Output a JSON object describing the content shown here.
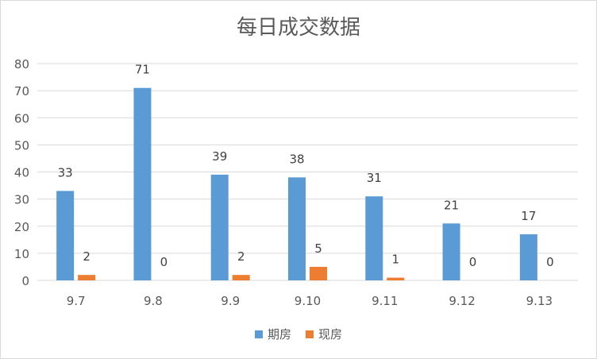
{
  "chart_data": {
    "type": "bar",
    "title": "每日成交数据",
    "categories": [
      "9.7",
      "9.8",
      "9.9",
      "9.10",
      "9.11",
      "9.12",
      "9.13"
    ],
    "series": [
      {
        "name": "期房",
        "color": "#5b9bd5",
        "values": [
          33,
          71,
          39,
          38,
          31,
          21,
          17
        ]
      },
      {
        "name": "现房",
        "color": "#ed7d31",
        "values": [
          2,
          0,
          2,
          5,
          1,
          0,
          0
        ]
      }
    ],
    "ylim": [
      0,
      80
    ],
    "yticks": [
      0,
      10,
      20,
      30,
      40,
      50,
      60,
      70,
      80
    ],
    "grid": true,
    "legend_position": "bottom"
  }
}
